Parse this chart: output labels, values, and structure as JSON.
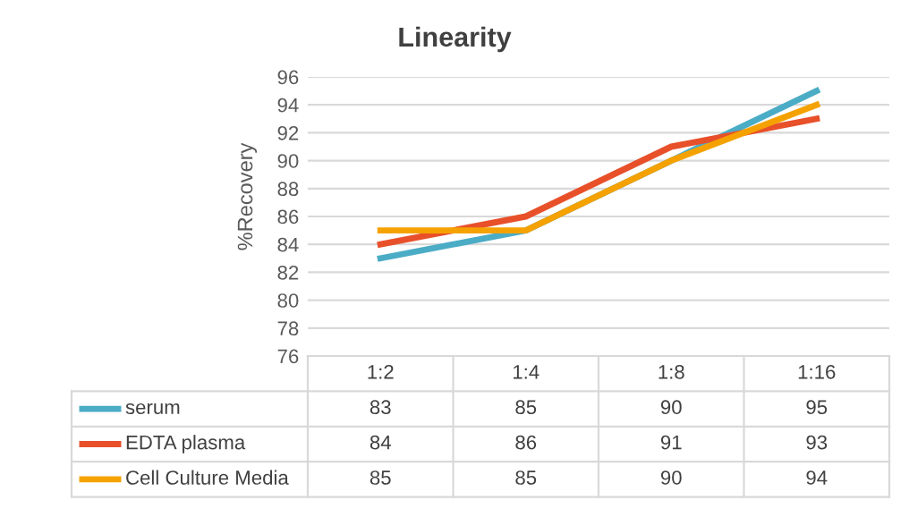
{
  "chart_data": {
    "type": "line",
    "title": "Linearity",
    "ylabel": "%Recovery",
    "categories": [
      "1:2",
      "1:4",
      "1:8",
      "1:16"
    ],
    "series": [
      {
        "name": "serum",
        "color": "#4bacc6",
        "values": [
          83,
          85,
          90,
          95
        ]
      },
      {
        "name": "EDTA plasma",
        "color": "#e8502a",
        "values": [
          84,
          86,
          91,
          93
        ]
      },
      {
        "name": "Cell Culture Media",
        "color": "#f5a200",
        "values": [
          85,
          85,
          90,
          94
        ]
      }
    ],
    "ylim": [
      76,
      96
    ],
    "yticks": [
      76,
      78,
      80,
      82,
      84,
      86,
      88,
      90,
      92,
      94,
      96
    ],
    "grid": "y",
    "legend": "bottom",
    "data_labels": true,
    "marker": "none",
    "line_style": "solid"
  }
}
